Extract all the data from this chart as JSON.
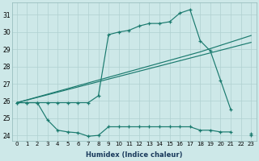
{
  "xlabel": "Humidex (Indice chaleur)",
  "color": "#1a7a6e",
  "bg_color": "#cde8e8",
  "grid_color": "#b0d0d0",
  "ylim": [
    23.7,
    31.7
  ],
  "xlim": [
    -0.5,
    23.5
  ],
  "line_main_x": [
    0,
    1,
    2,
    3,
    4,
    5,
    6,
    7,
    8,
    9,
    10,
    11,
    12,
    13,
    14,
    15,
    16,
    17,
    18,
    19,
    20,
    21,
    22,
    23
  ],
  "line_main_y": [
    25.9,
    25.9,
    25.9,
    25.9,
    25.9,
    25.9,
    25.9,
    25.9,
    26.3,
    29.85,
    30.0,
    30.1,
    30.35,
    30.5,
    30.5,
    30.6,
    31.1,
    31.3,
    29.5,
    28.9,
    27.2,
    25.5,
    null,
    24.1
  ],
  "line_low_x": [
    0,
    1,
    2,
    3,
    4,
    5,
    6,
    7,
    8,
    9,
    10,
    11,
    12,
    13,
    14,
    15,
    16,
    17,
    18,
    19,
    20,
    21,
    22,
    23
  ],
  "line_low_y": [
    25.9,
    25.9,
    25.9,
    24.9,
    24.3,
    24.2,
    24.15,
    23.95,
    24.0,
    24.5,
    24.5,
    24.5,
    24.5,
    24.5,
    24.5,
    24.5,
    24.5,
    24.5,
    24.3,
    24.3,
    24.2,
    24.2,
    null,
    24.0
  ],
  "line_trend1_x": [
    0,
    23
  ],
  "line_trend1_y": [
    25.9,
    29.4
  ],
  "line_trend2_x": [
    0,
    18,
    23
  ],
  "line_trend2_y": [
    25.9,
    28.85,
    29.8
  ]
}
